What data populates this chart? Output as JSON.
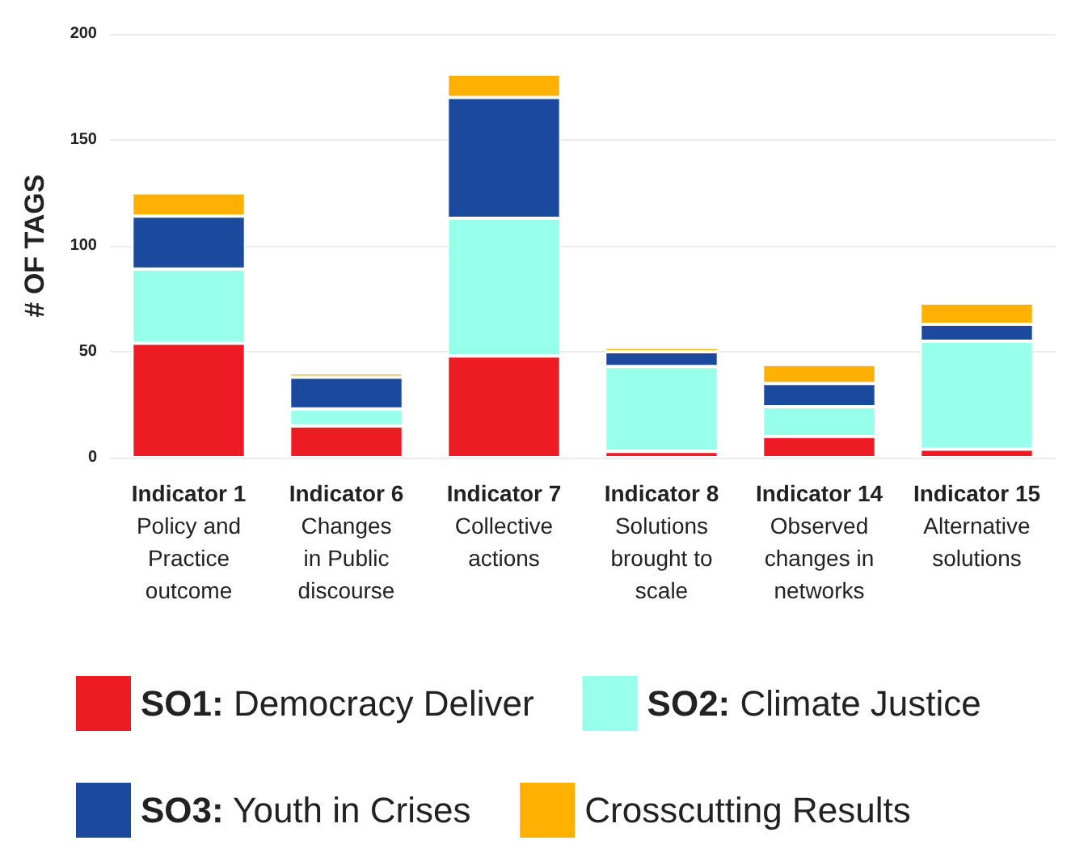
{
  "chart_data": {
    "type": "bar",
    "stacked": true,
    "ylabel": "# OF TAGS",
    "categories": [
      "Indicator 1\nPolicy and\nPractice\noutcome",
      "Indicator 6\nChanges\nin Public\ndiscourse",
      "Indicator 7\nCollective\nactions",
      "Indicator 8\nSolutions\nbrought to\nscale",
      "Indicator 14\nObserved\nchanges in\nnetworks",
      "Indicator 15\nAlternative\nsolutions"
    ],
    "series": [
      {
        "name": "SO1: Democracy Deliver",
        "color": "#ed1c24",
        "values": [
          54,
          15,
          48,
          3,
          10,
          4
        ]
      },
      {
        "name": "SO2: Climate Justice",
        "color": "#98ffeb",
        "values": [
          35,
          8,
          65,
          40,
          14,
          51
        ]
      },
      {
        "name": "SO3: Youth in Crises",
        "color": "#1a499e",
        "values": [
          25,
          15,
          57,
          7,
          11,
          8
        ]
      },
      {
        "name": "Crosscutting Results",
        "color": "#ffb000",
        "values": [
          11,
          2,
          11,
          2,
          9,
          10
        ]
      }
    ],
    "ylim": [
      0,
      200
    ],
    "yticks": [
      0,
      50,
      100,
      150,
      200
    ],
    "grid": "y",
    "legend": "bottom"
  }
}
